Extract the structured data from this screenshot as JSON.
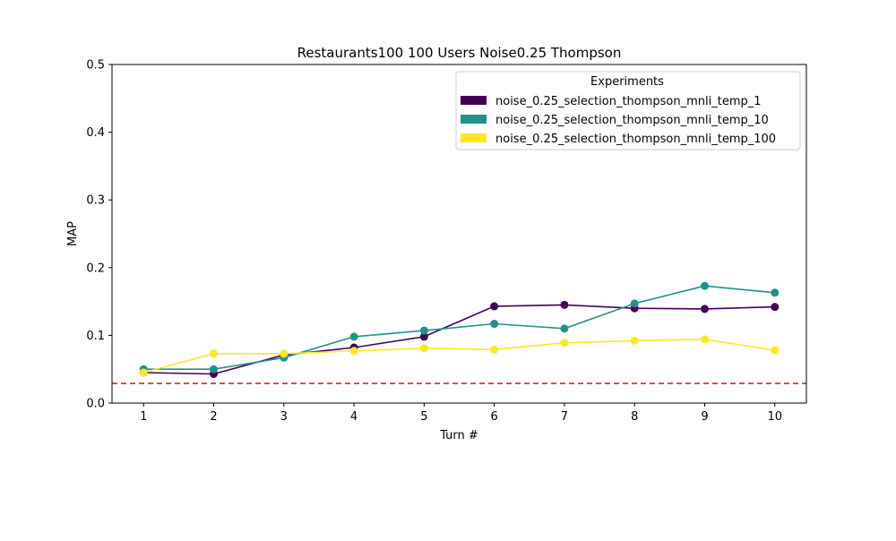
{
  "chart_data": {
    "type": "line",
    "title": "Restaurants100 100 Users Noise0.25 Thompson",
    "xlabel": "Turn #",
    "ylabel": "MAP",
    "x": [
      1,
      2,
      3,
      4,
      5,
      6,
      7,
      8,
      9,
      10
    ],
    "xlim": [
      0.55,
      10.45
    ],
    "ylim": [
      0,
      0.5
    ],
    "x_ticks": [
      "1",
      "2",
      "3",
      "4",
      "5",
      "6",
      "7",
      "8",
      "9",
      "10"
    ],
    "y_ticks": [
      "0.0",
      "0.1",
      "0.2",
      "0.3",
      "0.4",
      "0.5"
    ],
    "y_tick_values": [
      0,
      0.1,
      0.2,
      0.3,
      0.4,
      0.5
    ],
    "grid": false,
    "legend": {
      "title": "Experiments",
      "placement": "top-right"
    },
    "series": [
      {
        "name": "noise_0.25_selection_thompson_mnli_temp_1",
        "color": "#440154",
        "values": [
          0.045,
          0.043,
          0.071,
          0.082,
          0.098,
          0.143,
          0.145,
          0.14,
          0.139,
          0.142
        ]
      },
      {
        "name": "noise_0.25_selection_thompson_mnli_temp_10",
        "color": "#21918c",
        "values": [
          0.05,
          0.05,
          0.067,
          0.098,
          0.107,
          0.117,
          0.11,
          0.147,
          0.173,
          0.163
        ]
      },
      {
        "name": "noise_0.25_selection_thompson_mnli_temp_100",
        "color": "#fde725",
        "values": [
          0.045,
          0.073,
          0.073,
          0.077,
          0.081,
          0.079,
          0.089,
          0.092,
          0.094,
          0.078
        ]
      }
    ],
    "baseline": {
      "value": 0.029,
      "color": "#d62728",
      "style": "dashed"
    }
  }
}
